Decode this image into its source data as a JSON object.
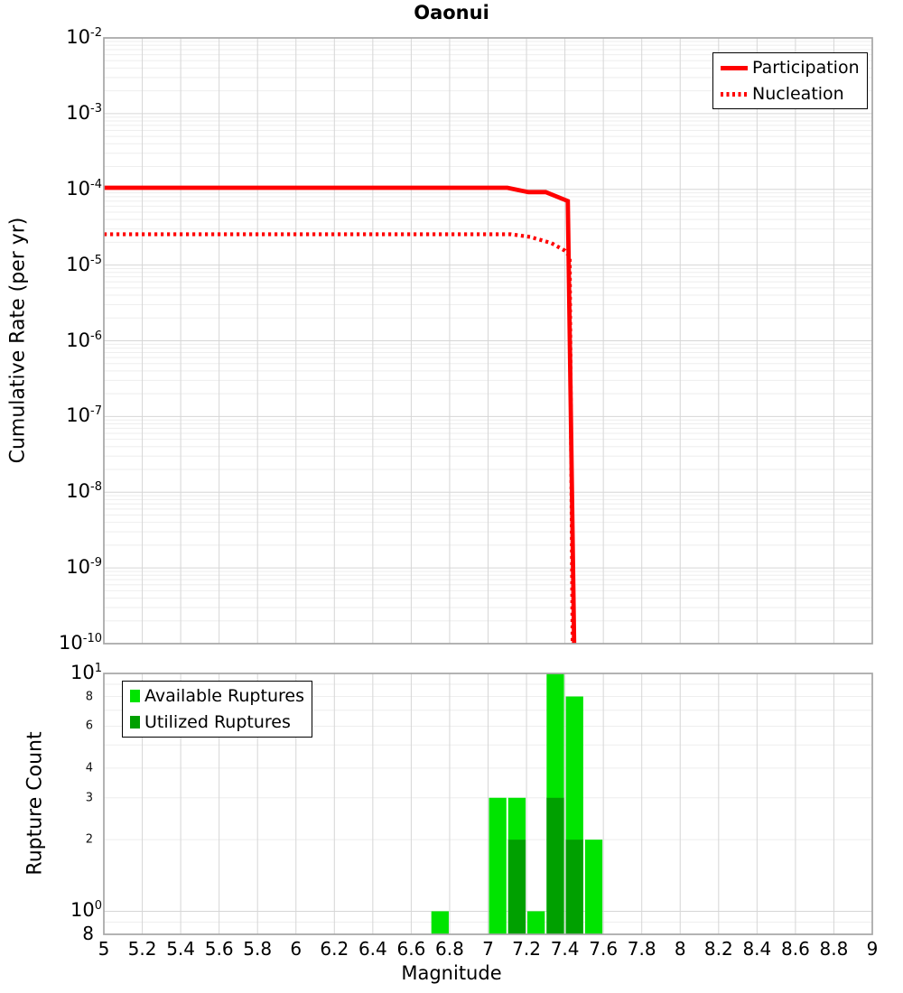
{
  "title": "Oaonui",
  "colors": {
    "line_red": "#ff0000",
    "available_green": "#00e400",
    "utilized_green": "#00a000",
    "grid_major": "#d6d6d6",
    "grid_minor": "#eeeeee",
    "frame": "#a6a6a6",
    "legend_border": "#000000"
  },
  "layout_hints": {
    "legend_top_position": "top-right",
    "legend_bottom_position": "top-left",
    "grid": "on"
  },
  "chart_data": [
    {
      "type": "line",
      "panel": "top",
      "title": "Oaonui",
      "ylabel": "Cumulative Rate (per yr)",
      "xlabel": "",
      "xlim": [
        5,
        9
      ],
      "ylim": [
        1e-10,
        0.01
      ],
      "yscale": "log",
      "y_tick_exponents": [
        -2,
        -3,
        -4,
        -5,
        -6,
        -7,
        -8,
        -9,
        -10
      ],
      "legend": [
        "Participation",
        "Nucleation"
      ],
      "series": [
        {
          "name": "Participation",
          "color": "#ff0000",
          "style": "solid",
          "points": [
            [
              5.0,
              0.000105
            ],
            [
              7.1,
              0.000105
            ],
            [
              7.21,
              9.2e-05
            ],
            [
              7.3,
              9.2e-05
            ],
            [
              7.415,
              7e-05
            ],
            [
              7.448,
              1e-10
            ]
          ]
        },
        {
          "name": "Nucleation",
          "color": "#ff0000",
          "style": "dotted",
          "points": [
            [
              5.0,
              2.55e-05
            ],
            [
              7.12,
              2.55e-05
            ],
            [
              7.22,
              2.35e-05
            ],
            [
              7.33,
              1.95e-05
            ],
            [
              7.4,
              1.55e-05
            ],
            [
              7.425,
              1.3e-05
            ],
            [
              7.44,
              1e-10
            ]
          ]
        }
      ]
    },
    {
      "type": "bar",
      "panel": "bottom",
      "ylabel": "Rupture Count",
      "xlabel": "Magnitude",
      "xlim": [
        5,
        9
      ],
      "x_ticks": [
        5,
        5.2,
        5.4,
        5.6,
        5.8,
        6,
        6.2,
        6.4,
        6.6,
        6.8,
        7,
        7.2,
        7.4,
        7.6,
        7.8,
        8,
        8.2,
        8.4,
        8.6,
        8.8,
        9
      ],
      "ylim": [
        0.8,
        10
      ],
      "yscale": "log",
      "bin_width": 0.1,
      "bin_starts": [
        6.7,
        7.0,
        7.1,
        7.2,
        7.3,
        7.4,
        7.5
      ],
      "series": [
        {
          "name": "Available Ruptures",
          "color": "#00e400",
          "values": [
            1,
            3,
            3,
            1,
            10,
            8,
            2
          ]
        },
        {
          "name": "Utilized Ruptures",
          "color": "#00a000",
          "values": [
            0,
            0,
            2,
            0,
            3,
            2,
            0
          ]
        }
      ],
      "y_major_ticks": [
        {
          "exp": 1,
          "value": 10
        },
        {
          "exp": 0,
          "value": 1
        }
      ],
      "y_minor_labeled": [
        8,
        6,
        4,
        3,
        2
      ],
      "y_minor_unlabeled": [
        9,
        7,
        5,
        0.9
      ],
      "y_bottom_label": {
        "text": "8",
        "value": 0.8
      }
    }
  ]
}
